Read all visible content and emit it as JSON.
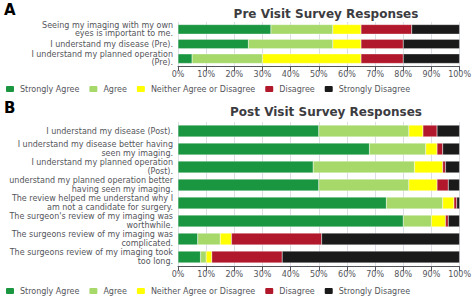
{
  "chart_data": [
    {
      "type": "bar",
      "orientation": "horizontal",
      "stacked": true,
      "title": "Pre Visit Survey Responses",
      "annotations": [
        "A"
      ],
      "categories": [
        "Seeing my imaging with my own\neyes is important to me.",
        "I understand my disease (Pre).",
        "I understand my planned operation\n(Pre)."
      ],
      "series": [
        {
          "name": "Strongly Agree",
          "color": "#1a9641",
          "values": [
            33,
            25,
            5
          ]
        },
        {
          "name": "Agree",
          "color": "#a6d96a",
          "values": [
            22,
            30,
            25
          ]
        },
        {
          "name": "Neither Agree or Disagree",
          "color": "#ffff00",
          "values": [
            10,
            10,
            35
          ]
        },
        {
          "name": "Disagree",
          "color": "#b2182b",
          "values": [
            18,
            15,
            15
          ]
        },
        {
          "name": "Strongly Disagree",
          "color": "#1a1a1a",
          "values": [
            17,
            20,
            20
          ]
        }
      ],
      "xlim": [
        0,
        100
      ],
      "xticks": [
        {
          "value": 0,
          "label": "0%"
        },
        {
          "value": 10,
          "label": "10%"
        },
        {
          "value": 20,
          "label": "20%"
        },
        {
          "value": 30,
          "label": "30%"
        },
        {
          "value": 40,
          "label": "40%"
        },
        {
          "value": 50,
          "label": "50%"
        },
        {
          "value": 60,
          "label": "60%"
        },
        {
          "value": 70,
          "label": "70%"
        },
        {
          "value": 80,
          "label": "80%"
        },
        {
          "value": 90,
          "label": "90%"
        },
        {
          "value": 100,
          "label": "100%"
        }
      ],
      "grid": true,
      "legend": "bottom"
    },
    {
      "type": "bar",
      "orientation": "horizontal",
      "stacked": true,
      "title": "Post Visit Survey Responses",
      "annotations": [
        "B"
      ],
      "categories": [
        "I understand my disease (Post).",
        "I understand my disease better having\nseen my imaging.",
        "I understand my planned operation\n(Post).",
        "understand my planned operation better\nhaving seen my imaging.",
        "The review helped me understand why I\nam not a candidate for surgery.",
        "The surgeon's review of my imaging was\nworthwhile.",
        "The surgeons review of my imaging was\ncomplicated.",
        "The surgeons review of my imaging took\ntoo long."
      ],
      "series": [
        {
          "name": "Strongly Agree",
          "color": "#1a9641",
          "values": [
            50,
            68,
            48,
            50,
            74,
            80,
            7,
            8
          ]
        },
        {
          "name": "Agree",
          "color": "#a6d96a",
          "values": [
            32,
            20,
            36,
            32,
            20,
            10,
            8,
            2
          ]
        },
        {
          "name": "Neither Agree or Disagree",
          "color": "#ffff00",
          "values": [
            5,
            4,
            10,
            10,
            4,
            5,
            4,
            2
          ]
        },
        {
          "name": "Disagree",
          "color": "#b2182b",
          "values": [
            5,
            2,
            1,
            4,
            1,
            1,
            32,
            25
          ]
        },
        {
          "name": "Strongly Disagree",
          "color": "#1a1a1a",
          "values": [
            8,
            6,
            5,
            4,
            1,
            4,
            49,
            63
          ]
        }
      ],
      "xlim": [
        0,
        100
      ],
      "xticks": [
        {
          "value": 0,
          "label": "0%"
        },
        {
          "value": 10,
          "label": "10%"
        },
        {
          "value": 20,
          "label": "20%"
        },
        {
          "value": 30,
          "label": "30%"
        },
        {
          "value": 40,
          "label": "40%"
        },
        {
          "value": 50,
          "label": "50%"
        },
        {
          "value": 60,
          "label": "60%"
        },
        {
          "value": 70,
          "label": "70%"
        },
        {
          "value": 80,
          "label": "80%"
        },
        {
          "value": 90,
          "label": "90%"
        },
        {
          "value": 100,
          "label": "100%"
        }
      ],
      "grid": true,
      "legend": "bottom"
    }
  ]
}
